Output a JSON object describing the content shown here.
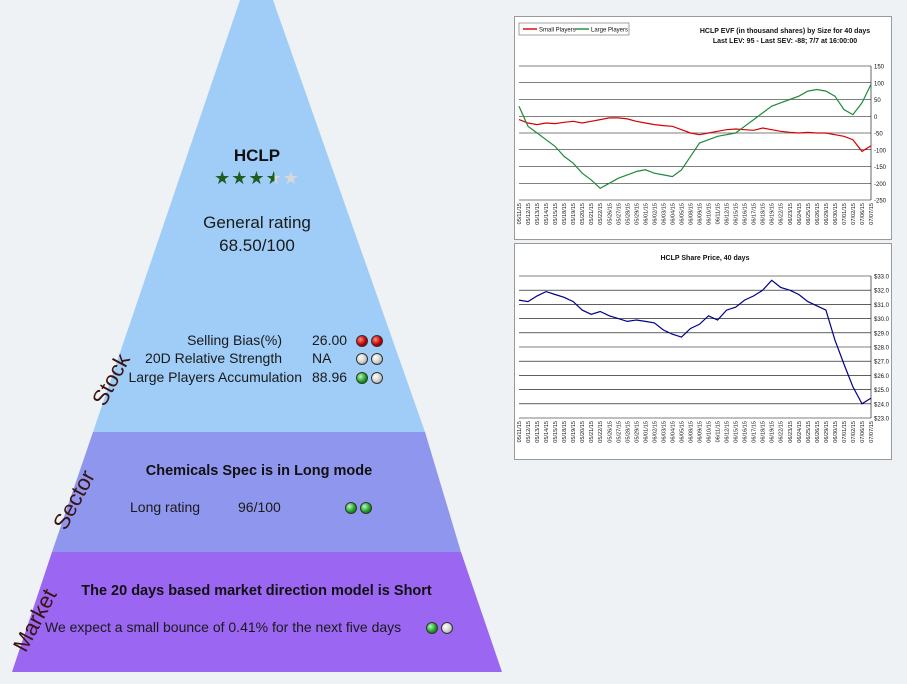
{
  "stock": {
    "ticker": "HCLP",
    "stars": 3.5,
    "rating_label": "General rating",
    "rating_value": "68.50/100",
    "side_label": "Stock",
    "metrics": [
      {
        "label": "Selling Bias(%)",
        "value": "26.00",
        "dots": [
          "red",
          "red"
        ]
      },
      {
        "label": "20D Relative Strength",
        "value": "NA",
        "dots": [
          "gray",
          "gray"
        ]
      },
      {
        "label": "Large Players Accumulation",
        "value": "88.96",
        "dots": [
          "green",
          "gray"
        ]
      }
    ]
  },
  "sector": {
    "side_label": "Sector",
    "title": "Chemicals Spec is in Long mode",
    "rating_label": "Long rating",
    "rating_value": "96/100",
    "dots": [
      "green",
      "green"
    ]
  },
  "market": {
    "side_label": "Market",
    "title": "The 20 days based market direction model is Short",
    "text": "We expect a small bounce of 0.41% for the next five days",
    "dots": [
      "green",
      "gray"
    ]
  },
  "colors": {
    "stock_band": "#9fcdf7",
    "sector_band": "#8f96ee",
    "market_band": "#9b66f2",
    "small_players": "#d60000",
    "large_players": "#1f8a3a",
    "price": "#00008b"
  },
  "chart_data": [
    {
      "type": "line",
      "title": "HCLP EVF (in thousand shares) by Size for 40 days",
      "subtitle": "Last LEV: 95 - Last SEV: -88; 7/7 at 16:00:00",
      "legend": "top-left",
      "ylim": [
        -250,
        150
      ],
      "yticks": [
        150,
        100,
        50,
        0,
        -50,
        -100,
        -150,
        -200,
        -250
      ],
      "grid": true,
      "x": [
        "05/11/15",
        "05/12/15",
        "05/13/15",
        "05/14/15",
        "05/15/15",
        "05/18/15",
        "05/19/15",
        "05/20/15",
        "05/21/15",
        "05/22/15",
        "05/26/15",
        "05/27/15",
        "05/28/15",
        "05/29/15",
        "06/01/15",
        "06/02/15",
        "06/03/15",
        "06/04/15",
        "06/05/15",
        "06/08/15",
        "06/09/15",
        "06/10/15",
        "06/11/15",
        "06/12/15",
        "06/15/15",
        "06/16/15",
        "06/17/15",
        "06/18/15",
        "06/19/15",
        "06/22/15",
        "06/23/15",
        "06/24/15",
        "06/25/15",
        "06/26/15",
        "06/29/15",
        "06/30/15",
        "07/01/15",
        "07/02/15",
        "07/06/15",
        "07/07/15"
      ],
      "series": [
        {
          "name": "Small Players",
          "color": "#d60000",
          "values": [
            -10,
            -20,
            -25,
            -20,
            -22,
            -18,
            -15,
            -20,
            -15,
            -10,
            -5,
            -5,
            -8,
            -15,
            -20,
            -25,
            -28,
            -30,
            -40,
            -50,
            -55,
            -50,
            -45,
            -40,
            -38,
            -40,
            -42,
            -35,
            -40,
            -45,
            -48,
            -50,
            -48,
            -50,
            -50,
            -55,
            -60,
            -70,
            -105,
            -88
          ]
        },
        {
          "name": "Large Players",
          "color": "#1f8a3a",
          "values": [
            30,
            -30,
            -50,
            -70,
            -90,
            -120,
            -140,
            -170,
            -190,
            -215,
            -200,
            -185,
            -175,
            -165,
            -160,
            -170,
            -175,
            -180,
            -160,
            -120,
            -80,
            -70,
            -60,
            -55,
            -50,
            -30,
            -10,
            10,
            30,
            40,
            50,
            60,
            75,
            80,
            75,
            60,
            20,
            5,
            40,
            95
          ]
        }
      ]
    },
    {
      "type": "line",
      "title": "HCLP Share Price, 40 days",
      "ylim": [
        23.0,
        33.0
      ],
      "yticks": [
        "$33.0",
        "$32.0",
        "$31.0",
        "$30.0",
        "$29.0",
        "$28.0",
        "$27.0",
        "$26.0",
        "$25.0",
        "$24.0",
        "$23.0"
      ],
      "grid": true,
      "x": [
        "05/11/15",
        "05/12/15",
        "05/13/15",
        "05/14/15",
        "05/15/15",
        "05/18/15",
        "05/19/15",
        "05/20/15",
        "05/21/15",
        "05/22/15",
        "05/26/15",
        "05/27/15",
        "05/28/15",
        "05/29/15",
        "06/01/15",
        "06/02/15",
        "06/03/15",
        "06/04/15",
        "06/05/15",
        "06/08/15",
        "06/09/15",
        "06/10/15",
        "06/11/15",
        "06/12/15",
        "06/15/15",
        "06/16/15",
        "06/17/15",
        "06/18/15",
        "06/19/15",
        "06/22/15",
        "06/23/15",
        "06/24/15",
        "06/25/15",
        "06/26/15",
        "06/29/15",
        "06/30/15",
        "07/01/15",
        "07/02/15",
        "07/06/15",
        "07/07/15"
      ],
      "series": [
        {
          "color": "#00008b",
          "values": [
            31.3,
            31.2,
            31.6,
            31.9,
            31.7,
            31.5,
            31.2,
            30.6,
            30.3,
            30.5,
            30.2,
            30.0,
            29.8,
            29.9,
            29.8,
            29.7,
            29.2,
            28.9,
            28.7,
            29.3,
            29.6,
            30.2,
            29.9,
            30.6,
            30.8,
            31.3,
            31.6,
            32.0,
            32.7,
            32.2,
            32.0,
            31.7,
            31.2,
            30.9,
            30.6,
            28.5,
            26.8,
            25.2,
            24.0,
            24.4
          ]
        }
      ]
    }
  ]
}
